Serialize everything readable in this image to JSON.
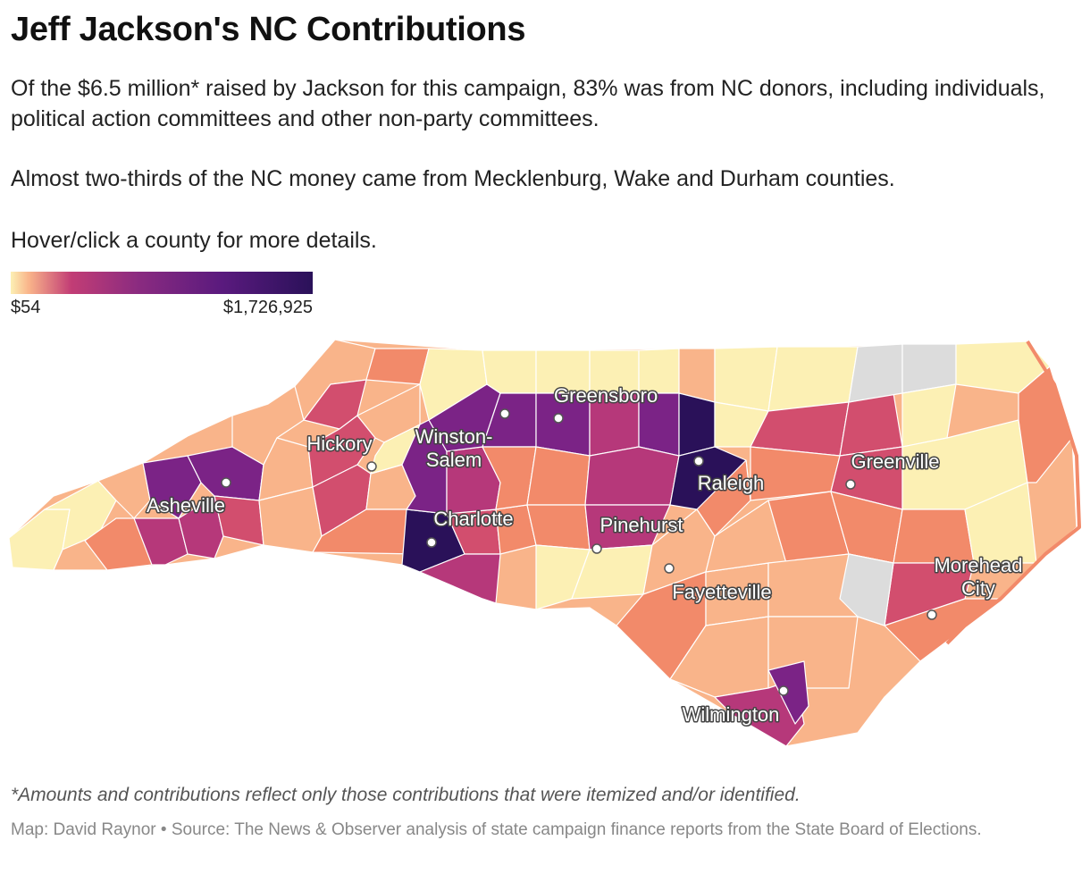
{
  "title": "Jeff Jackson's NC Contributions",
  "description": [
    "Of the $6.5 million* raised by Jackson for this campaign, 83% was from NC donors, including individuals, political action committees and other non-party committees.",
    "Almost two-thirds of the NC money came from Mecklenburg, Wake and Durham counties.",
    "Hover/click a county for more details."
  ],
  "legend": {
    "min_label": "$54",
    "max_label": "$1,726,925"
  },
  "colors": {
    "no_data": "#dcdcdc",
    "lowest": "#fcf0b4",
    "low": "#f9b48a",
    "mid_low": "#f28a6a",
    "mid": "#d24e6e",
    "mid_high": "#b6387a",
    "high": "#7b2386",
    "highest": "#2a1159"
  },
  "cities": [
    {
      "name": "Greensboro"
    },
    {
      "name": "Winston-Salem",
      "lines": [
        "Winston-",
        "Salem"
      ]
    },
    {
      "name": "Hickory"
    },
    {
      "name": "Asheville"
    },
    {
      "name": "Charlotte"
    },
    {
      "name": "Raleigh"
    },
    {
      "name": "Greenville"
    },
    {
      "name": "Pinehurst"
    },
    {
      "name": "Fayetteville"
    },
    {
      "name": "Morehead City",
      "lines": [
        "Morehead",
        "City"
      ]
    },
    {
      "name": "Wilmington"
    }
  ],
  "footnote": "*Amounts and contributions reflect only those contributions that were itemized and/or identified.",
  "credit": "Map: David Raynor • Source: The News & Observer analysis of state campaign finance reports from the State Board of Elections."
}
